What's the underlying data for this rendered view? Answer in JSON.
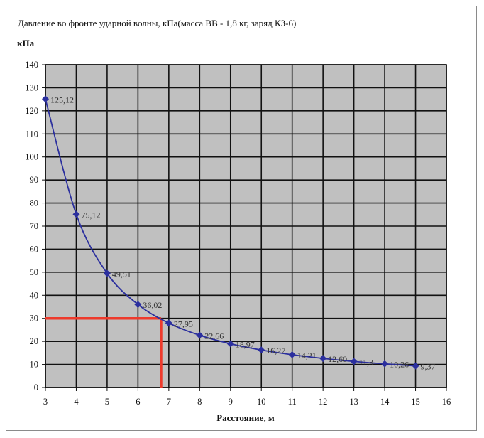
{
  "chart_data": {
    "type": "line",
    "title": "Давление во фронте ударной волны, кПа(масса ВВ - 1,8 кг, заряд КЗ-6)",
    "ylabel": "кПа",
    "xlabel": "Расстояние, м",
    "xlim": [
      3,
      16
    ],
    "ylim": [
      0,
      140
    ],
    "x_ticks": [
      3,
      4,
      5,
      6,
      7,
      8,
      9,
      10,
      11,
      12,
      13,
      14,
      15,
      16
    ],
    "y_ticks": [
      0,
      10,
      20,
      30,
      40,
      50,
      60,
      70,
      80,
      90,
      100,
      110,
      120,
      130,
      140
    ],
    "grid": true,
    "legend": "none",
    "series": [
      {
        "x": [
          3,
          4,
          5,
          6,
          7,
          8,
          9,
          10,
          11,
          12,
          13,
          14,
          15
        ],
        "values": [
          125.12,
          75.12,
          49.51,
          36.02,
          27.95,
          22.66,
          18.97,
          16.27,
          14.21,
          12.6,
          11.3,
          10.26,
          9.37
        ],
        "labels": [
          "125,12",
          "75,12",
          "49,51",
          "36,02",
          "27,95",
          "22,66",
          "18,97",
          "16,27",
          "14,21",
          "12,60",
          "11,3",
          "10,26",
          "9,37"
        ],
        "color": "#2b2f9e"
      }
    ],
    "annotations": [
      {
        "type": "reference-lines",
        "x": 6.75,
        "y": 30,
        "color": "#ee3a2c"
      }
    ],
    "colors": {
      "plot_background": "#c0c0c0",
      "grid": "#111111",
      "line": "#2b2f9e",
      "marker": "#2b2f9e"
    }
  }
}
